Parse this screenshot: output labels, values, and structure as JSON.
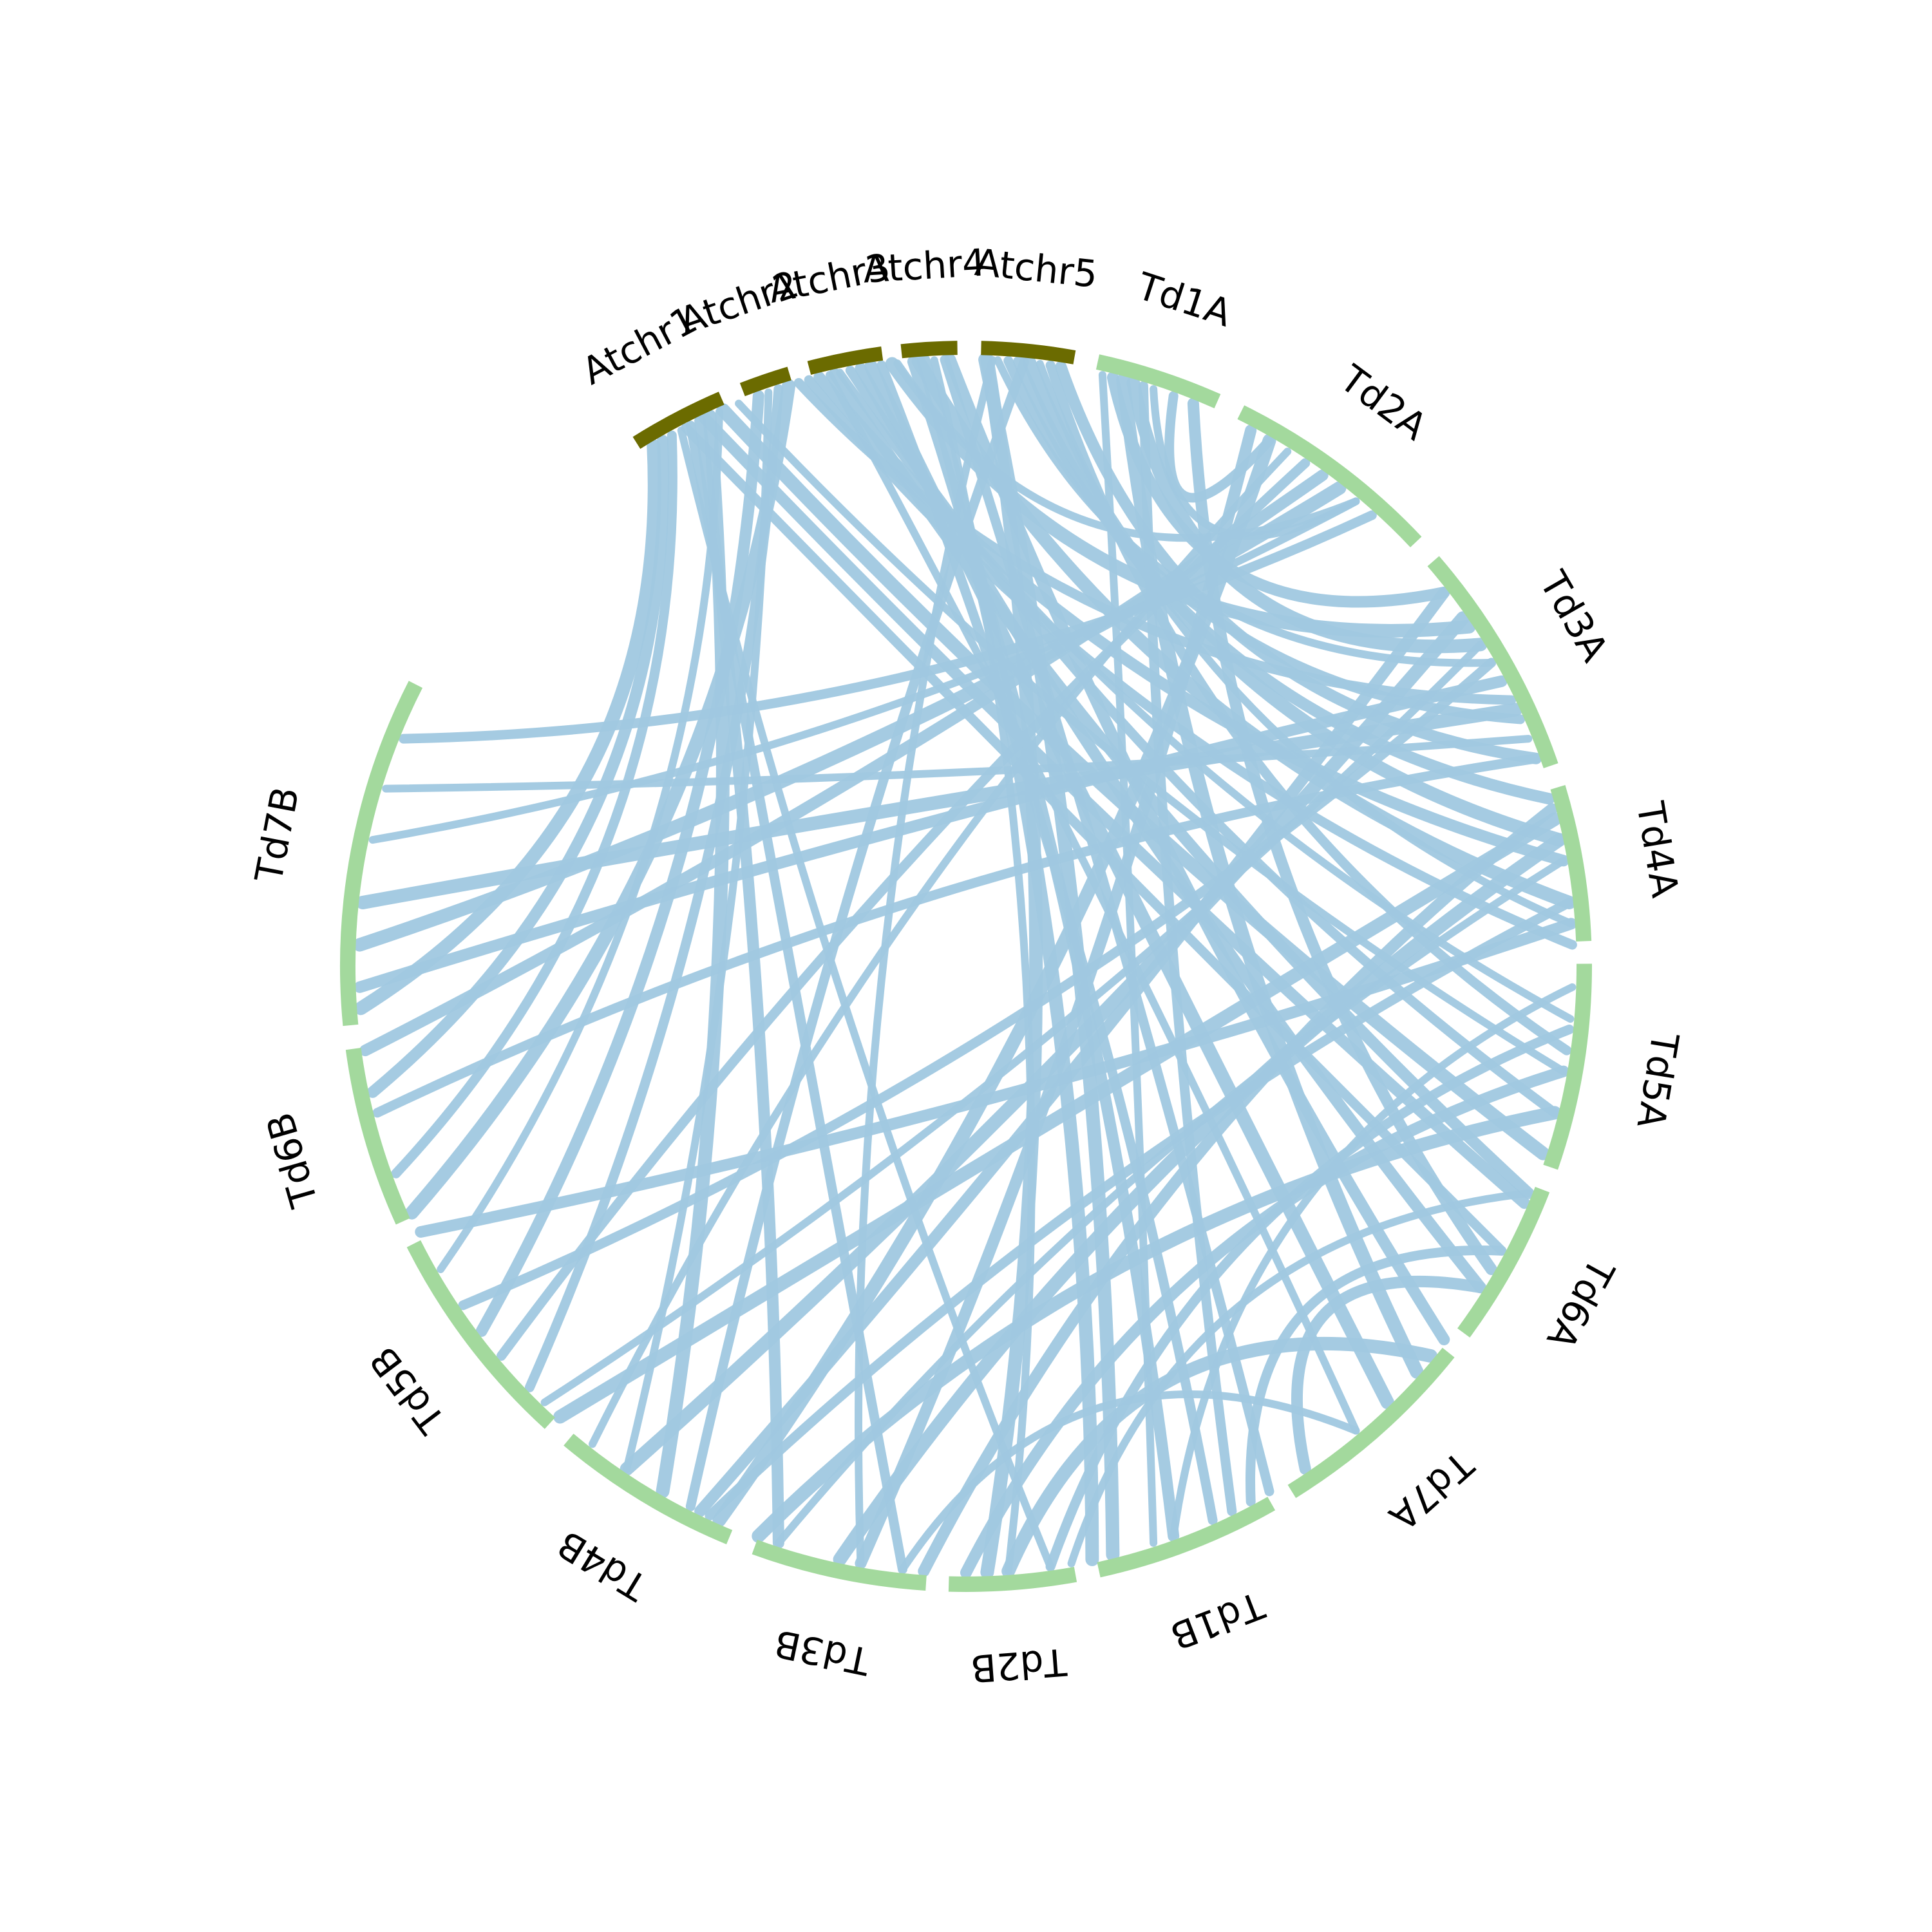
{
  "colors": {
    "at_segment": "#6b6b00",
    "td_segment": "#a3d99d",
    "link": "#a0c8e0",
    "label": "#000000",
    "background": "#ffffff"
  },
  "segments": [
    {
      "label": "Atchr1",
      "group": "at"
    },
    {
      "label": "Atchr2",
      "group": "at"
    },
    {
      "label": "Atchr3",
      "group": "at"
    },
    {
      "label": "Atchr4",
      "group": "at"
    },
    {
      "label": "Atchr5",
      "group": "at"
    },
    {
      "label": "Td1A",
      "group": "td"
    },
    {
      "label": "Td2A",
      "group": "td"
    },
    {
      "label": "Td3A",
      "group": "td"
    },
    {
      "label": "Td4A",
      "group": "td"
    },
    {
      "label": "Td5A",
      "group": "td"
    },
    {
      "label": "Td6A",
      "group": "td"
    },
    {
      "label": "Td7A",
      "group": "td"
    },
    {
      "label": "Td1B",
      "group": "td"
    },
    {
      "label": "Td2B",
      "group": "td"
    },
    {
      "label": "Td3B",
      "group": "td"
    },
    {
      "label": "Td4B",
      "group": "td"
    },
    {
      "label": "Td5B",
      "group": "td"
    },
    {
      "label": "Td6B",
      "group": "td"
    },
    {
      "label": "Td7B",
      "group": "td"
    }
  ]
}
